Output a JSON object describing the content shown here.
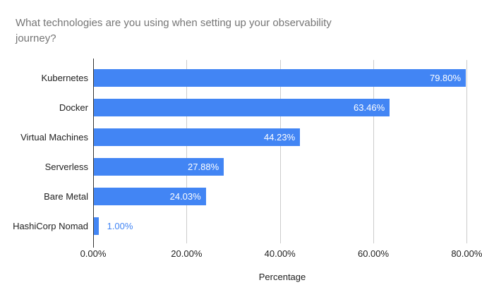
{
  "chart_data": {
    "type": "bar",
    "orientation": "horizontal",
    "title": "What technologies are you using when setting up your observability journey?",
    "categories": [
      "Kubernetes",
      "Docker",
      "Virtual Machines",
      "Serverless",
      "Bare Metal",
      "HashiCorp Nomad"
    ],
    "values": [
      79.8,
      63.46,
      44.23,
      27.88,
      24.03,
      1.0
    ],
    "value_labels": [
      "79.80%",
      "63.46%",
      "44.23%",
      "27.88%",
      "24.03%",
      "1.00%"
    ],
    "xlabel": "Percentage",
    "x_ticks": [
      "0.00%",
      "20.00%",
      "40.00%",
      "60.00%",
      "80.00%"
    ],
    "x_tick_values": [
      0,
      20,
      40,
      60,
      80
    ],
    "xlim": [
      0,
      81
    ],
    "grid": true,
    "legend": "none",
    "colors": {
      "bar": "#4285f4",
      "value_label_inside": "#ffffff",
      "value_label_outside": "#4285f4",
      "gridline": "#cccccc",
      "axis_line": "#333333",
      "title_text": "#757575",
      "label_text": "#212121",
      "background": "#ffffff"
    }
  }
}
